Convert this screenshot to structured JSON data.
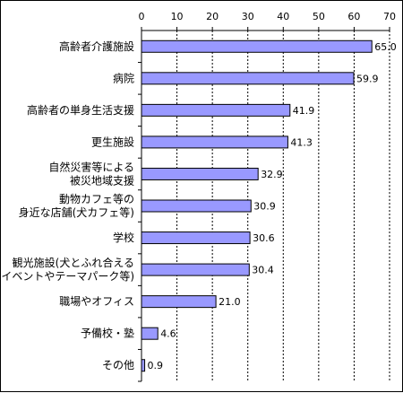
{
  "chart_data": {
    "type": "bar",
    "orientation": "horizontal",
    "categories": [
      [
        "高齢者介護施設"
      ],
      [
        "病院"
      ],
      [
        "高齢者の単身生活支援"
      ],
      [
        "更生施設"
      ],
      [
        "自然災害等による",
        "被災地域支援"
      ],
      [
        "動物カフェ等の",
        "身近な店舗(犬カフェ等)"
      ],
      [
        "学校"
      ],
      [
        "観光施設(犬とふれ合える",
        "イベントやテーマパーク等)"
      ],
      [
        "職場やオフィス"
      ],
      [
        "予備校・塾"
      ],
      [
        "その他"
      ]
    ],
    "values": [
      65.0,
      59.9,
      41.9,
      41.3,
      32.9,
      30.9,
      30.6,
      30.4,
      21.0,
      4.6,
      0.9
    ],
    "value_labels": [
      "65.0",
      "59.9",
      "41.9",
      "41.3",
      "32.9",
      "30.9",
      "30.6",
      "30.4",
      "21.0",
      "4.6",
      "0.9"
    ],
    "xticks": [
      "0",
      "10",
      "20",
      "30",
      "40",
      "50",
      "60",
      "70"
    ],
    "xlim": [
      0,
      70
    ],
    "x_axis_position": "top",
    "grid": "vertical dashed",
    "colors": {
      "bar": "#9999ff",
      "bar_border": "#000000",
      "grid": "#000000"
    }
  }
}
